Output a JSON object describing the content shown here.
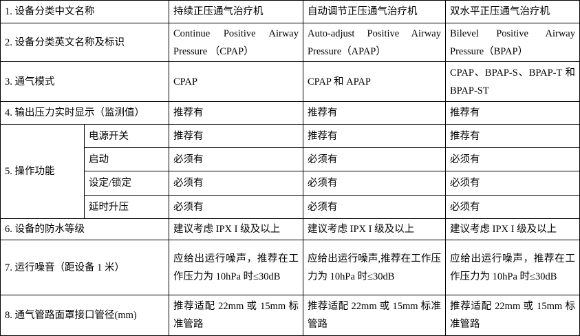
{
  "table": {
    "rows": [
      {
        "label": "1. 设备分类中文名称",
        "cells": [
          "持续正压通气治疗机",
          "自动调节正压通气治疗机",
          "双水平正压通气治疗机"
        ]
      },
      {
        "label": "2. 设备分类英文名称及标识",
        "cells": [
          "Continue Positive Airway Pressure （CPAP）",
          "Auto-adjust Positive Airway Pressure（APAP）",
          "Bilevel Positive Airway Pressure（BPAP）"
        ]
      },
      {
        "label": "3. 通气模式",
        "cells": [
          "CPAP",
          "CPAP 和 APAP",
          "CPAP、BPAP-S、BPAP-T 和 BPAP-ST"
        ]
      },
      {
        "label": "4. 输出压力实时显示（监测值）",
        "cells": [
          "推荐有",
          "推荐有",
          "推荐有"
        ]
      },
      {
        "label": "5. 操作功能",
        "subrows": [
          {
            "label": "电源开关",
            "cells": [
              "推荐有",
              "推荐有",
              "推荐有"
            ]
          },
          {
            "label": "启动",
            "cells": [
              "必须有",
              "必须有",
              "必须有"
            ]
          },
          {
            "label": "设定/锁定",
            "cells": [
              "必须有",
              "必须有",
              "必须有"
            ]
          },
          {
            "label": "延时升压",
            "cells": [
              "必须有",
              "必须有",
              "必须有"
            ]
          }
        ]
      },
      {
        "label": "6. 设备的防水等级",
        "cells": [
          "建议考虑 IPX I 级及以上",
          "建议考虑 IPX I 级及以上",
          "建议考虑 IPX I 级及以上"
        ]
      },
      {
        "label": "7. 运行噪音（距设备 1 米）",
        "cells": [
          "应给出运行噪声，推荐在工作压力为 10hPa 时≤30dB",
          "应给出运行噪声,推荐在工作压力为 10hPa 时≤30dB",
          "应给出运行噪声，推荐在工作压力为 10hPa 时≤30dB"
        ]
      },
      {
        "label": "8. 通气管路面罩接口管径(mm)",
        "cells": [
          "推荐适配 22mm 或 15mm 标准管路",
          "推荐适配 22mm 或 15mm 标准管路",
          "推荐适配 22mm 或 15mm 标准管路"
        ]
      }
    ]
  }
}
